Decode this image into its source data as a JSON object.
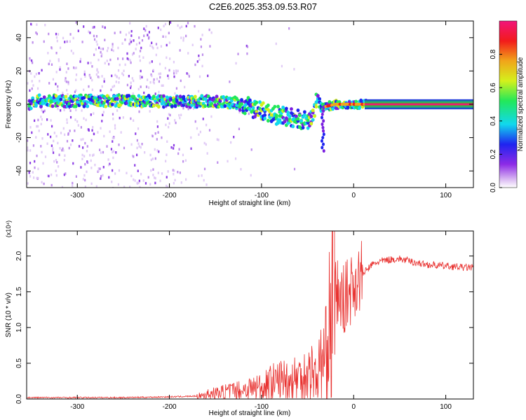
{
  "figure": {
    "title": "C2E6.2025.353.09.53.R07",
    "colorbar_label": "Normalized spectral amplitude"
  },
  "colors": {
    "snr_line": "#e8312f",
    "frame": "#000000"
  },
  "chart_data": [
    {
      "type": "heatmap",
      "title": "C2E6.2025.353.09.53.R07",
      "xlabel": "Height of straight line (km)",
      "ylabel": "Frequency (Hz)",
      "xlim": [
        -355,
        130
      ],
      "ylim": [
        -50,
        50
      ],
      "xticks": [
        -300,
        -200,
        -100,
        0,
        100
      ],
      "yticks": [
        -40,
        -20,
        0,
        20,
        40
      ],
      "grid": false,
      "colormap": "rainbow (purple-blue-cyan-green-yellow-red-magenta)",
      "zlabel": "Normalized spectral amplitude",
      "zlim": [
        0,
        1
      ],
      "zticks": [
        0.0,
        0.2,
        0.4,
        0.6,
        0.8
      ],
      "ridge": {
        "description": "dominant frequency vs height",
        "x": [
          -350,
          -300,
          -250,
          -200,
          -160,
          -130,
          -100,
          -80,
          -60,
          -45,
          -40,
          -35,
          -20,
          0,
          130
        ],
        "frequency": [
          2,
          2,
          2,
          1.5,
          2,
          1,
          -4,
          -7,
          -9,
          -10,
          5,
          -2,
          0,
          0,
          0
        ]
      }
    },
    {
      "type": "line",
      "xlabel": "Height of straight line (km)",
      "ylabel": "SNR (10 * v/v)",
      "yscale_label": "(x10⁴)",
      "xlim": [
        -355,
        130
      ],
      "ylim": [
        0,
        2.35
      ],
      "xticks": [
        -300,
        -200,
        -100,
        0,
        100
      ],
      "yticks": [
        0.0,
        0.5,
        1.0,
        1.5,
        2.0
      ],
      "grid": false,
      "series": [
        {
          "x": [
            -355,
            -300,
            -250,
            -200,
            -170,
            -150,
            -120,
            -100,
            -80,
            -60,
            -40,
            -30,
            -25,
            -22,
            -20,
            -15,
            -10,
            -5,
            0,
            10,
            20,
            30,
            40,
            50,
            60,
            70,
            80,
            90,
            100,
            110,
            120,
            130
          ],
          "y": [
            0.02,
            0.02,
            0.02,
            0.03,
            0.04,
            0.08,
            0.13,
            0.18,
            0.26,
            0.3,
            0.4,
            0.6,
            1.1,
            2.2,
            1.6,
            1.35,
            1.4,
            1.5,
            1.6,
            1.75,
            1.88,
            1.93,
            1.95,
            1.96,
            1.93,
            1.9,
            1.88,
            1.87,
            1.86,
            1.85,
            1.84,
            1.84
          ]
        }
      ]
    }
  ]
}
